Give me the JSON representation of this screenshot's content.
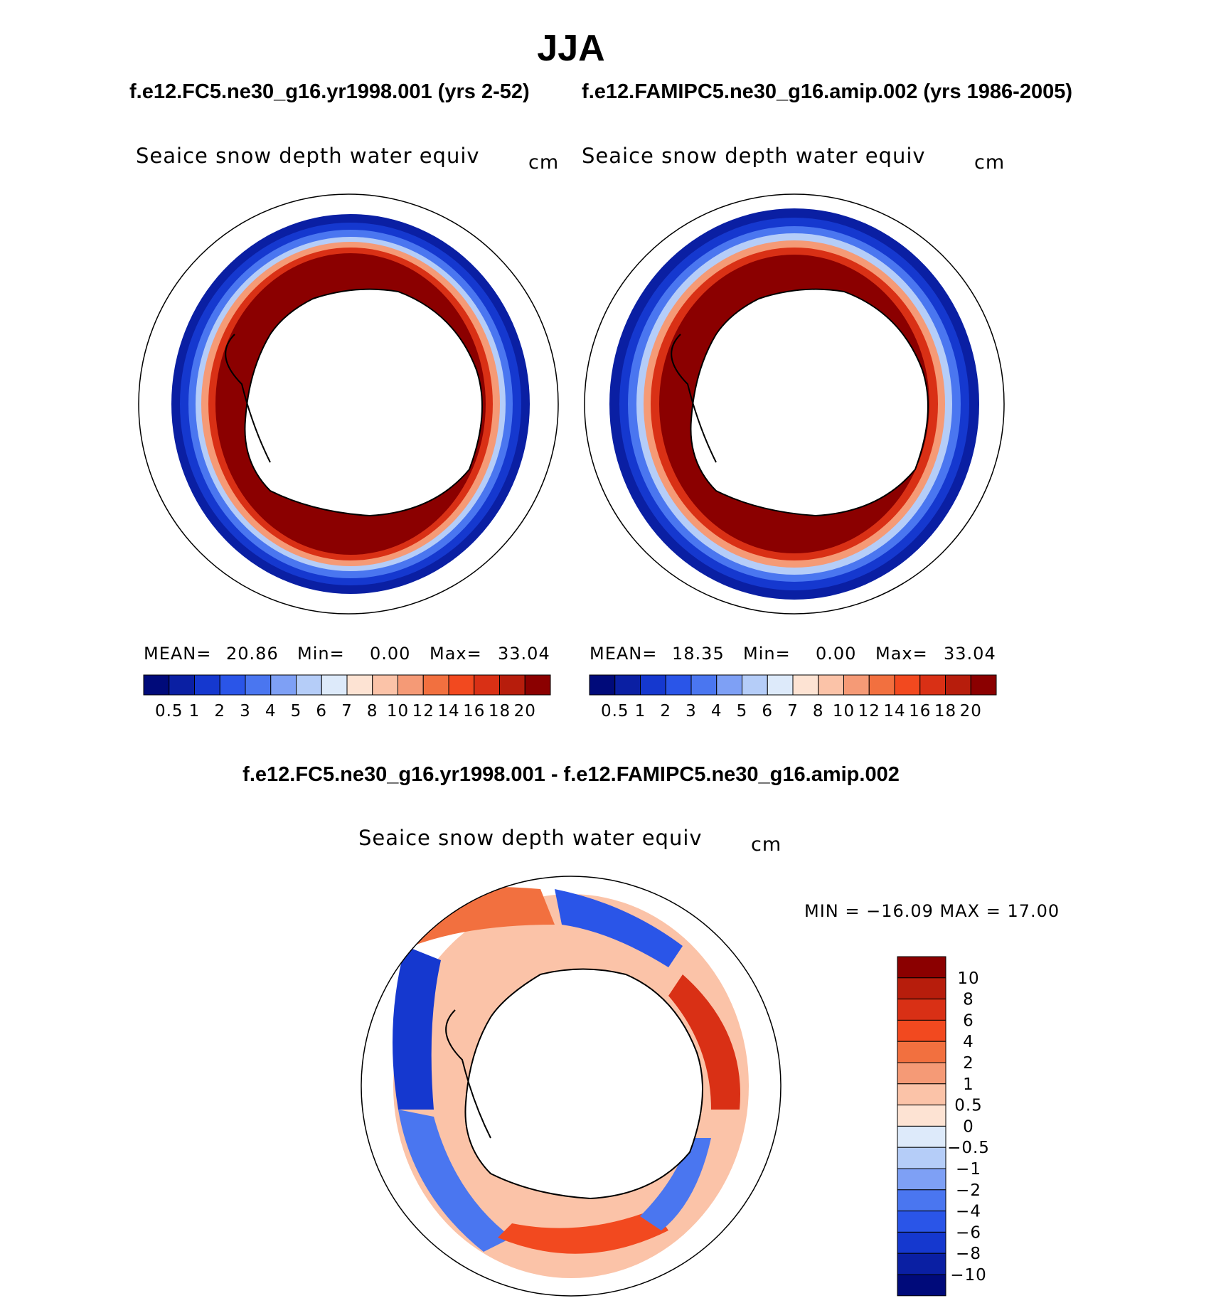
{
  "title": "JJA",
  "panels": [
    {
      "run_title": "f.e12.FC5.ne30_g16.yr1998.001 (yrs 2-52)",
      "variable": "Seaice snow depth water equiv",
      "units": "cm",
      "stats": {
        "mean_label": "MEAN=",
        "mean": "20.86",
        "min_label": "Min=",
        "min": "0.00",
        "max_label": "Max=",
        "max": "33.04"
      }
    },
    {
      "run_title": "f.e12.FAMIPC5.ne30_g16.amip.002 (yrs 1986-2005)",
      "variable": "Seaice snow depth water equiv",
      "units": "cm",
      "stats": {
        "mean_label": "MEAN=",
        "mean": "18.35",
        "min_label": "Min=",
        "min": "0.00",
        "max_label": "Max=",
        "max": "33.04"
      }
    }
  ],
  "diff_panel": {
    "title": "f.e12.FC5.ne30_g16.yr1998.001 - f.e12.FAMIPC5.ne30_g16.amip.002",
    "variable": "Seaice snow depth water equiv",
    "units": "cm",
    "minmax": "MIN = −16.09 MAX =   17.00"
  },
  "abs_colorbar": {
    "labels": [
      "0.5",
      "1",
      "2",
      "3",
      "4",
      "5",
      "6",
      "7",
      "8",
      "10",
      "12",
      "14",
      "16",
      "18",
      "20"
    ],
    "colors": [
      "#000a7a",
      "#0a1fa3",
      "#1538cf",
      "#2a55e8",
      "#4a76f0",
      "#7ea0f5",
      "#b5cdf8",
      "#ddeafa",
      "#fde3d3",
      "#fbc3a8",
      "#f59a76",
      "#f2703f",
      "#f2491f",
      "#d93015",
      "#b71d0c",
      "#8b0000"
    ]
  },
  "diff_colorbar": {
    "labels": [
      "10",
      "8",
      "6",
      "4",
      "2",
      "1",
      "0.5",
      "0",
      "−0.5",
      "−1",
      "−2",
      "−4",
      "−6",
      "−8",
      "−10"
    ],
    "colors": [
      "#8b0000",
      "#b71d0c",
      "#d93015",
      "#f2491f",
      "#f2703f",
      "#f59a76",
      "#fbc3a8",
      "#fde3d3",
      "#ddeafa",
      "#b5cdf8",
      "#7ea0f5",
      "#4a76f0",
      "#2a55e8",
      "#1538cf",
      "#0a1fa3",
      "#000a7a"
    ]
  }
}
